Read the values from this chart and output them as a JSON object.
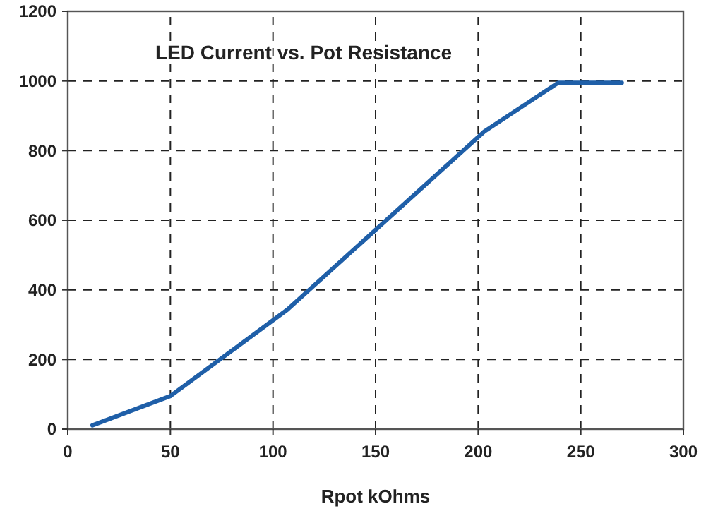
{
  "chart_data": {
    "type": "line",
    "title": "LED Current vs. Pot Resistance",
    "xlabel": "Rpot kOhms",
    "xlim": [
      0,
      300
    ],
    "xticks": [
      0,
      50,
      100,
      150,
      200,
      250,
      300
    ],
    "ylim": [
      0,
      1200
    ],
    "yticks": [
      0,
      200,
      400,
      600,
      800,
      1000,
      1200
    ],
    "grid": true,
    "line_style": "solid",
    "marker": "none",
    "series": [
      {
        "color": "#1f5fa8",
        "x": [
          12,
          50,
          107,
          203,
          239,
          270
        ],
        "values": [
          11,
          95,
          343,
          855,
          995,
          995
        ]
      }
    ]
  }
}
